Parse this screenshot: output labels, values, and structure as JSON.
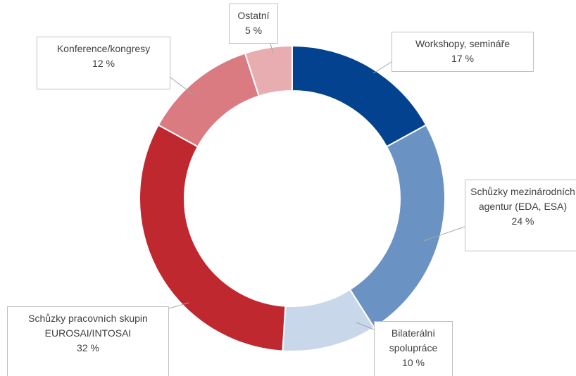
{
  "chart_data": {
    "type": "donut",
    "categories": [
      "Workshopy, semináře",
      "Schůzky mezinárodních agentur (EDA, ESA)",
      "Bilaterální spolupráce",
      "Schůzky pracovních skupin EUROSAI/INTOSAI",
      "Konference/kongresy",
      "Ostatní"
    ],
    "values": [
      17,
      24,
      10,
      32,
      12,
      5
    ],
    "value_labels": [
      "17 %",
      "24 %",
      "10 %",
      "32 %",
      "12 %",
      "5 %"
    ],
    "colors": [
      "#03428f",
      "#6a93c4",
      "#c9d7ea",
      "#c0282f",
      "#d97b80",
      "#e8adb0"
    ]
  }
}
